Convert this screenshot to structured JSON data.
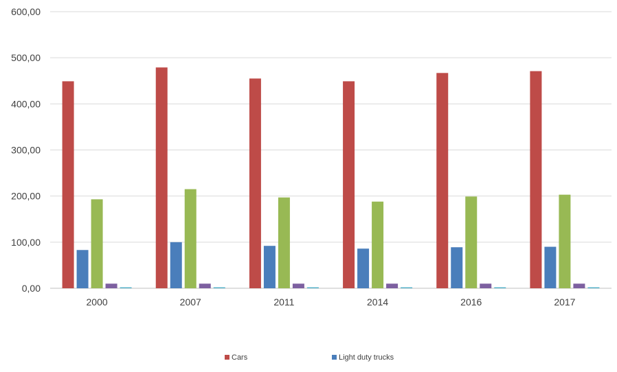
{
  "chart_data": {
    "type": "bar",
    "title": "",
    "xlabel": "",
    "ylabel": "",
    "ylim": [
      0,
      600
    ],
    "yticks": [
      "0,00",
      "100,00",
      "200,00",
      "300,00",
      "400,00",
      "500,00",
      "600,00"
    ],
    "grid": true,
    "legend_position": "bottom",
    "categories": [
      "2000",
      "2007",
      "2011",
      "2014",
      "2016",
      "2017"
    ],
    "series": [
      {
        "name": "Cars",
        "color": "#be4b48",
        "values": [
          449,
          479,
          455,
          449,
          467,
          471
        ]
      },
      {
        "name": "Light duty trucks",
        "color": "#4a7ebb",
        "values": [
          83,
          100,
          92,
          86,
          89,
          90
        ]
      },
      {
        "color": "#98b954",
        "values": [
          193,
          215,
          197,
          188,
          199,
          203
        ]
      },
      {
        "color": "#7d60a0",
        "values": [
          10,
          10,
          10,
          10,
          10,
          10
        ]
      },
      {
        "color": "#46aac5",
        "values": [
          2,
          2,
          2,
          2,
          2,
          2
        ]
      }
    ],
    "gridline_color": "#d9d9d9"
  }
}
